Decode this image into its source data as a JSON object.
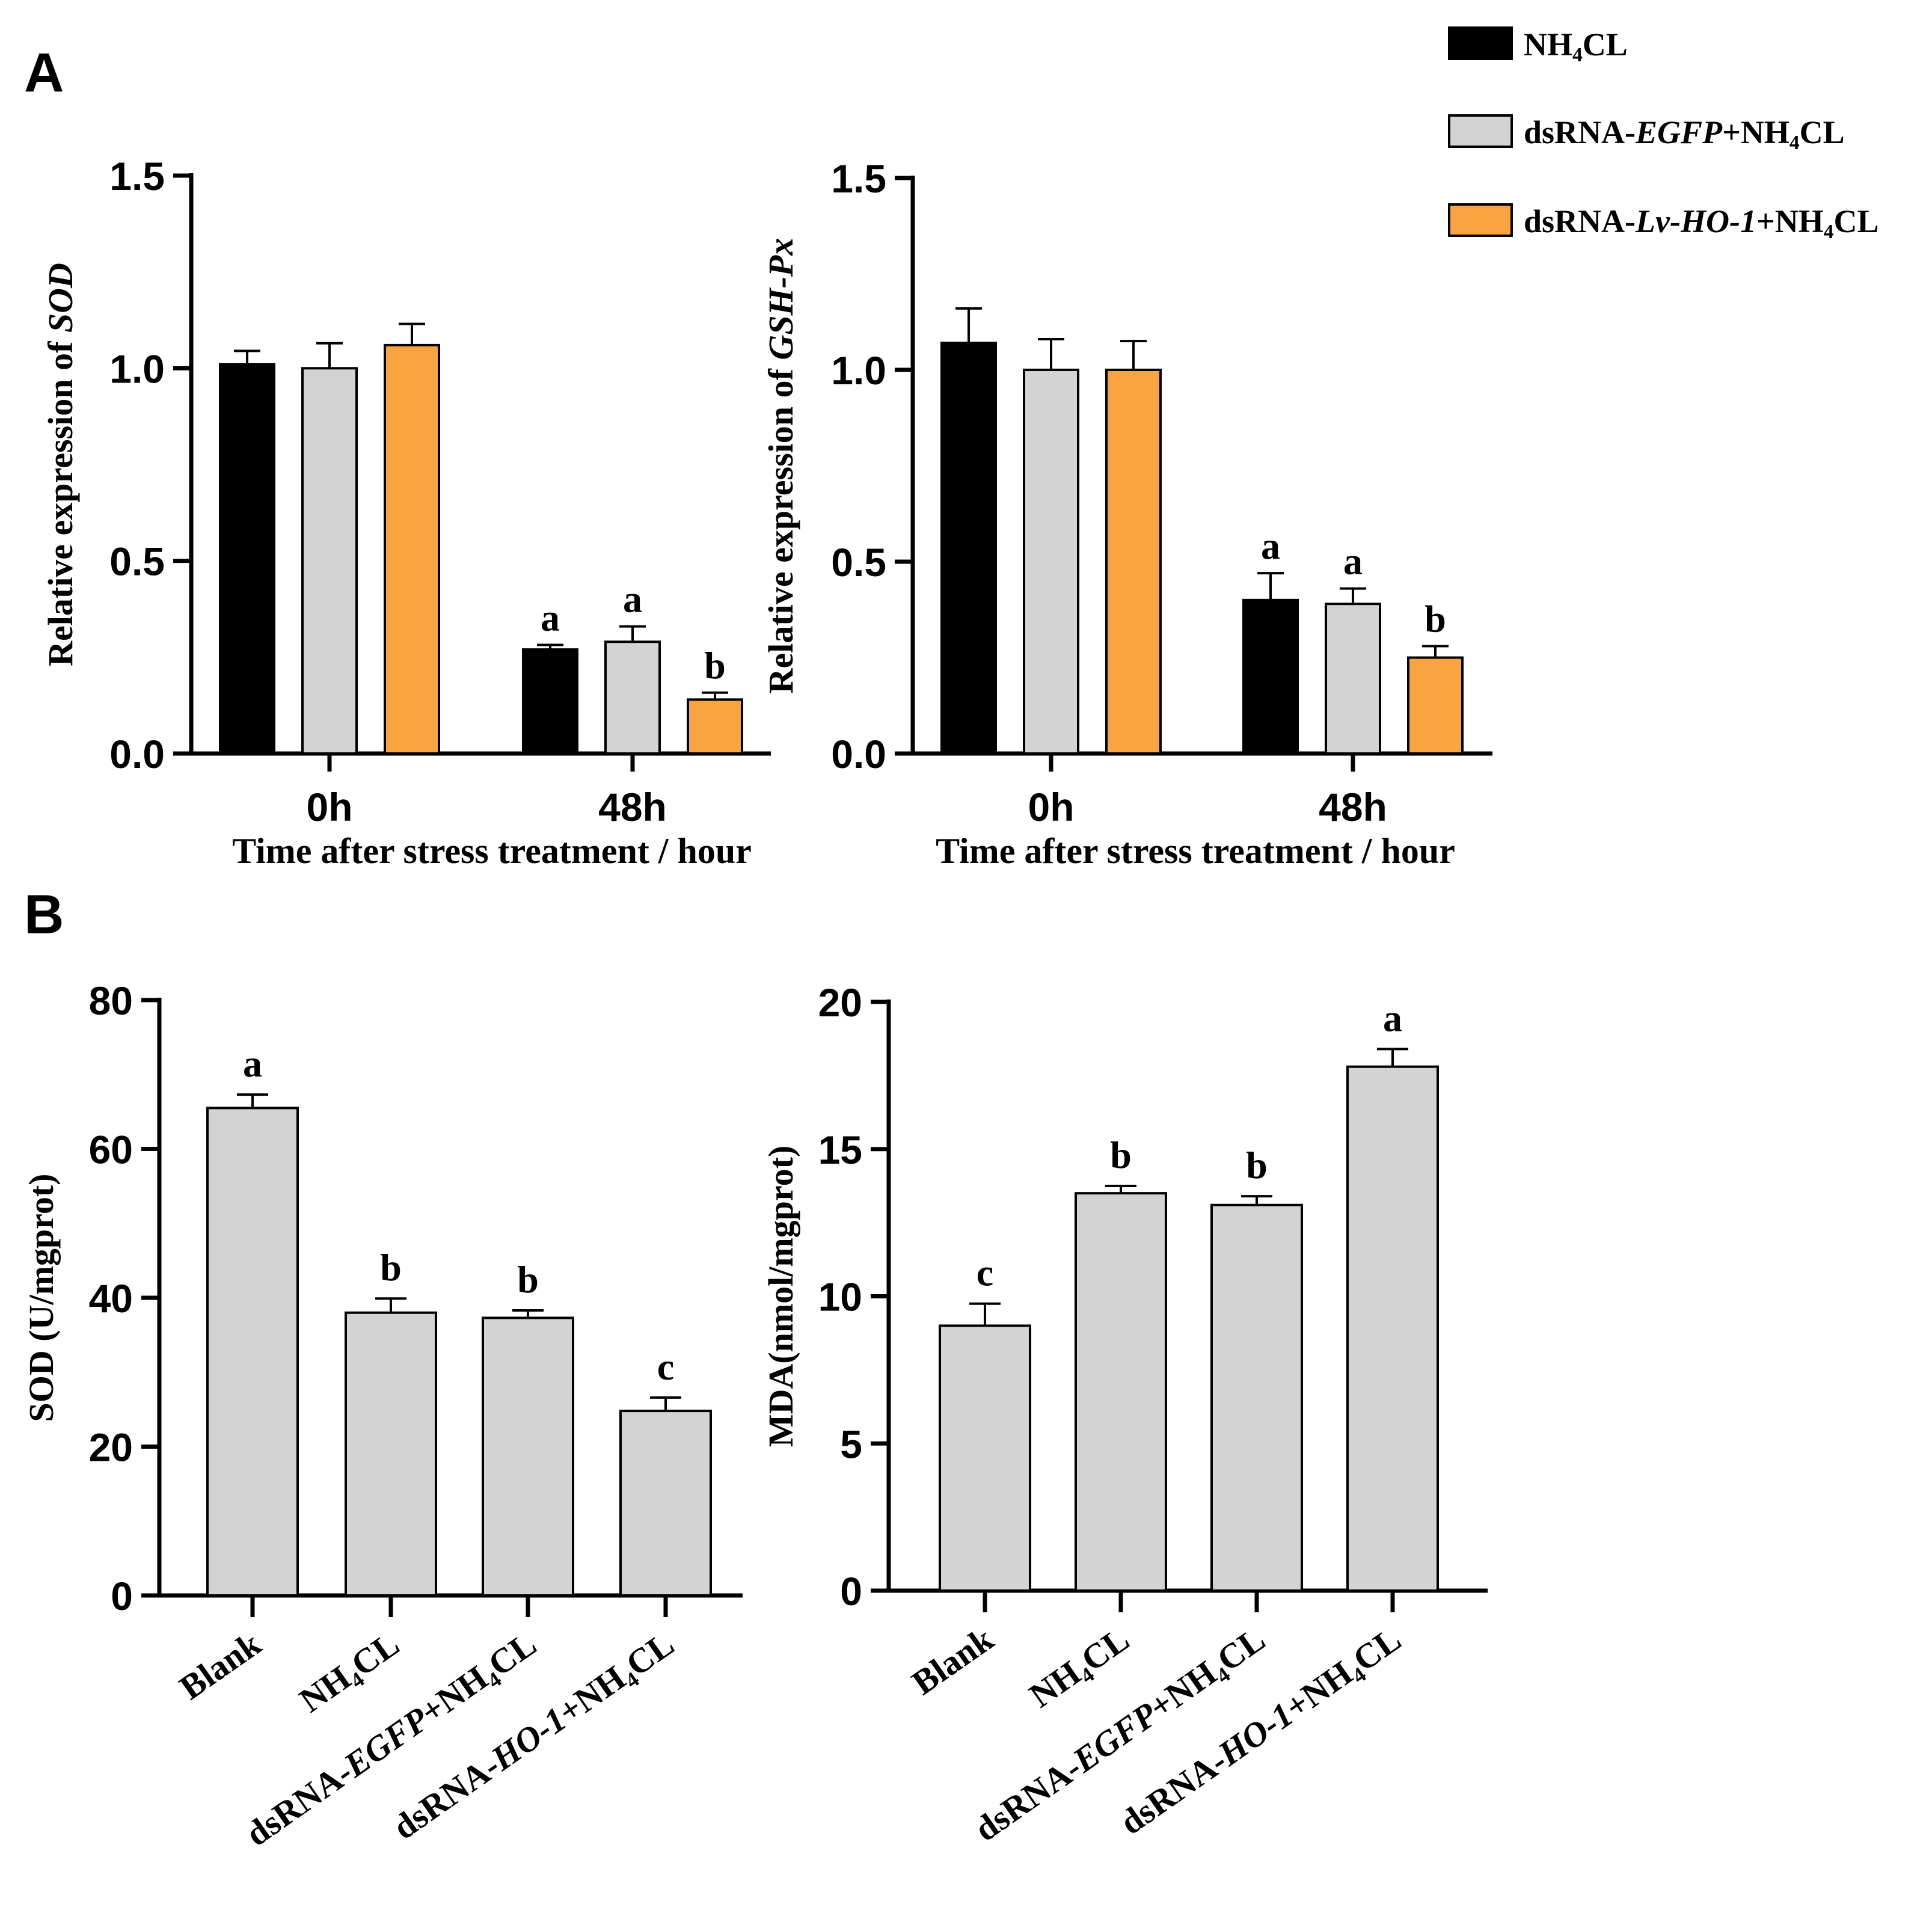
{
  "figure": {
    "panel_a_label": "A",
    "panel_b_label": "B"
  },
  "legend": {
    "items": [
      {
        "key": "nh4cl",
        "color": "#000000",
        "parts": [
          [
            "NH",
            ""
          ],
          [
            "4",
            "sub"
          ],
          [
            "CL",
            ""
          ]
        ]
      },
      {
        "key": "egfp",
        "color": "#d3d3d3",
        "parts": [
          [
            "dsRNA-",
            ""
          ],
          [
            "EGFP",
            "it"
          ],
          [
            "+NH",
            ""
          ],
          [
            "4",
            "sub"
          ],
          [
            "CL",
            ""
          ]
        ]
      },
      {
        "key": "ho1",
        "color": "#f9a441",
        "parts": [
          [
            "dsRNA-",
            ""
          ],
          [
            "Lv-HO-1",
            "it"
          ],
          [
            "+NH",
            ""
          ],
          [
            "4",
            "sub"
          ],
          [
            "CL",
            ""
          ]
        ]
      }
    ]
  },
  "chart_data": [
    {
      "id": "a1",
      "type": "bar",
      "categories": [
        "0h",
        "48h"
      ],
      "xlabel": "Time after stress treatment / hour",
      "ylabel_parts": [
        [
          "Relative expression of ",
          ""
        ],
        [
          "SOD",
          "it"
        ]
      ],
      "ylim": [
        0,
        1.5
      ],
      "yticks": [
        "0.0",
        "0.5",
        "1.0",
        "1.5"
      ],
      "series": [
        {
          "name": "NH4CL",
          "color": "#000000",
          "values": [
            1.01,
            0.27
          ],
          "errors": [
            0.035,
            0.012
          ],
          "letters": [
            "",
            "a"
          ]
        },
        {
          "name": "dsRNA-EGFP+NH4CL",
          "color": "#d3d3d3",
          "values": [
            1.0,
            0.29
          ],
          "errors": [
            0.065,
            0.04
          ],
          "letters": [
            "",
            "a"
          ]
        },
        {
          "name": "dsRNA-Lv-HO-1+NH4CL",
          "color": "#f9a441",
          "values": [
            1.06,
            0.14
          ],
          "errors": [
            0.055,
            0.018
          ],
          "letters": [
            "",
            "b"
          ]
        }
      ]
    },
    {
      "id": "a2",
      "type": "bar",
      "categories": [
        "0h",
        "48h"
      ],
      "xlabel": "Time after stress treatment / hour",
      "ylabel_parts": [
        [
          "Relative expression of ",
          ""
        ],
        [
          "GSH-Px",
          "it"
        ]
      ],
      "ylim": [
        0,
        1.5
      ],
      "yticks": [
        "0.0",
        "0.5",
        "1.0",
        "1.5"
      ],
      "series": [
        {
          "name": "NH4CL",
          "color": "#000000",
          "values": [
            1.07,
            0.4
          ],
          "errors": [
            0.09,
            0.07
          ],
          "letters": [
            "",
            "a"
          ]
        },
        {
          "name": "dsRNA-EGFP+NH4CL",
          "color": "#d3d3d3",
          "values": [
            1.0,
            0.39
          ],
          "errors": [
            0.08,
            0.04
          ],
          "letters": [
            "",
            "a"
          ]
        },
        {
          "name": "dsRNA-Lv-HO-1+NH4CL",
          "color": "#f9a441",
          "values": [
            1.0,
            0.25
          ],
          "errors": [
            0.075,
            0.03
          ],
          "letters": [
            "",
            "b"
          ]
        }
      ]
    },
    {
      "id": "b1",
      "type": "bar",
      "ylabel": "SOD (U/mgprot)",
      "ylim": [
        0,
        80
      ],
      "yticks": [
        "0",
        "20",
        "40",
        "60",
        "80"
      ],
      "categories": [
        [
          [
            "Blank",
            ""
          ]
        ],
        [
          [
            "NH",
            ""
          ],
          [
            "4",
            "sub"
          ],
          [
            "CL",
            ""
          ]
        ],
        [
          [
            "dsRNA-",
            ""
          ],
          [
            "EGFP",
            "it"
          ],
          [
            "+NH",
            ""
          ],
          [
            "4",
            "sub"
          ],
          [
            "CL",
            ""
          ]
        ],
        [
          [
            "dsRNA-",
            ""
          ],
          [
            "HO-1",
            "it"
          ],
          [
            "+NH",
            ""
          ],
          [
            "4",
            "sub"
          ],
          [
            "CL",
            ""
          ]
        ]
      ],
      "color": "#d3d3d3",
      "values": [
        65.5,
        38.0,
        37.3,
        24.8
      ],
      "errors": [
        1.8,
        1.9,
        1.0,
        1.8
      ],
      "letters": [
        "a",
        "b",
        "b",
        "c"
      ]
    },
    {
      "id": "b2",
      "type": "bar",
      "ylabel": "MDA(nmol/mgprot)",
      "ylim": [
        0,
        20
      ],
      "yticks": [
        "0",
        "5",
        "10",
        "15",
        "20"
      ],
      "categories": [
        [
          [
            "Blank",
            ""
          ]
        ],
        [
          [
            "NH",
            ""
          ],
          [
            "4",
            "sub"
          ],
          [
            "CL",
            ""
          ]
        ],
        [
          [
            "dsRNA-",
            ""
          ],
          [
            "EGFP",
            "it"
          ],
          [
            "+NH",
            ""
          ],
          [
            "4",
            "sub"
          ],
          [
            "CL",
            ""
          ]
        ],
        [
          [
            "dsRNA-",
            ""
          ],
          [
            "HO-1",
            "it"
          ],
          [
            "+NH",
            ""
          ],
          [
            "4",
            "sub"
          ],
          [
            "CL",
            ""
          ]
        ]
      ],
      "color": "#d3d3d3",
      "values": [
        9.0,
        13.5,
        13.1,
        17.8
      ],
      "errors": [
        0.75,
        0.25,
        0.3,
        0.6
      ],
      "letters": [
        "c",
        "b",
        "b",
        "a"
      ]
    }
  ]
}
